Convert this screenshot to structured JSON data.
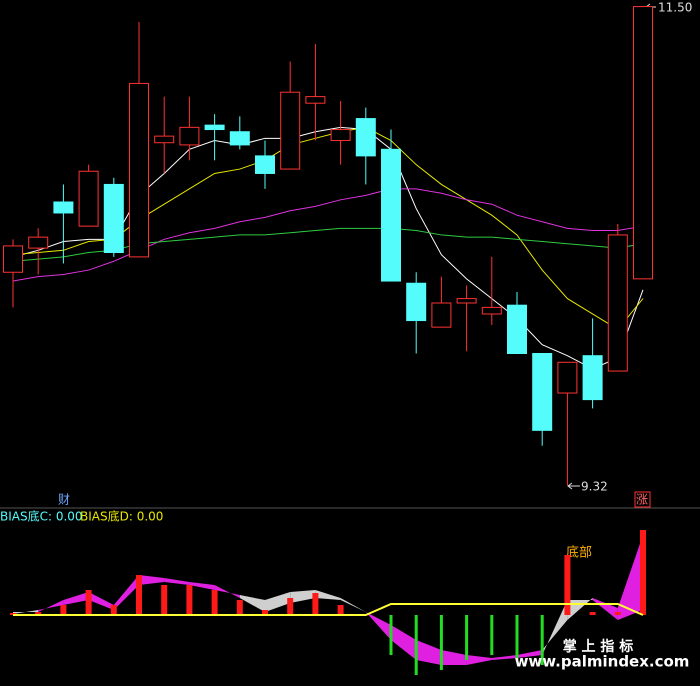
{
  "chart_data": [
    {
      "type": "candlestick",
      "up_color": "#ff3232",
      "down_color": "#54fcfc",
      "open": [
        10.29,
        10.4,
        10.61,
        10.5,
        10.69,
        10.36,
        10.88,
        10.87,
        10.96,
        10.93,
        10.82,
        10.76,
        11.06,
        10.89,
        10.99,
        10.85,
        10.24,
        10.04,
        10.15,
        10.1,
        10.14,
        9.92,
        9.74,
        9.91,
        9.84,
        10.26
      ],
      "high": [
        10.44,
        10.49,
        10.69,
        10.78,
        10.72,
        11.43,
        11.09,
        11.09,
        11.01,
        11.0,
        10.89,
        11.25,
        11.33,
        11.07,
        11.04,
        10.94,
        10.29,
        10.27,
        10.23,
        10.36,
        10.2,
        9.92,
        9.88,
        10.08,
        10.51,
        11.5
      ],
      "low": [
        10.13,
        10.28,
        10.33,
        10.5,
        10.36,
        10.36,
        10.74,
        10.8,
        10.8,
        10.85,
        10.67,
        10.76,
        10.89,
        10.78,
        10.69,
        10.25,
        9.92,
        10.04,
        9.93,
        10.05,
        9.92,
        9.5,
        9.32,
        9.67,
        9.84,
        10.26
      ],
      "close": [
        10.41,
        10.45,
        10.56,
        10.75,
        10.38,
        11.15,
        10.91,
        10.95,
        10.94,
        10.87,
        10.74,
        11.11,
        11.09,
        10.94,
        10.82,
        10.25,
        10.07,
        10.15,
        10.17,
        10.13,
        9.92,
        9.57,
        9.88,
        9.71,
        10.46,
        11.5
      ],
      "lines": [
        {
          "color": "#ffffff",
          "values": [
            10.36,
            10.39,
            10.43,
            10.44,
            10.44,
            10.64,
            10.74,
            10.85,
            10.89,
            10.87,
            10.9,
            10.9,
            10.93,
            10.95,
            10.94,
            10.85,
            10.58,
            10.37,
            10.26,
            10.17,
            10.08,
            9.96,
            9.91,
            9.85,
            9.9,
            10.21
          ]
        },
        {
          "color": "#e8e800",
          "values": [
            10.37,
            10.38,
            10.39,
            10.43,
            10.44,
            10.53,
            10.6,
            10.67,
            10.74,
            10.76,
            10.8,
            10.87,
            10.9,
            10.93,
            10.95,
            10.89,
            10.78,
            10.69,
            10.62,
            10.55,
            10.46,
            10.3,
            10.17,
            10.1,
            10.03,
            10.17
          ]
        },
        {
          "color": "#e033e0",
          "values": [
            10.25,
            10.27,
            10.28,
            10.3,
            10.34,
            10.39,
            10.44,
            10.47,
            10.49,
            10.52,
            10.54,
            10.57,
            10.59,
            10.62,
            10.64,
            10.67,
            10.67,
            10.65,
            10.62,
            10.6,
            10.55,
            10.52,
            10.49,
            10.48,
            10.48,
            10.5
          ]
        },
        {
          "color": "#2ecc40",
          "values": [
            10.34,
            10.35,
            10.36,
            10.38,
            10.39,
            10.42,
            10.43,
            10.44,
            10.45,
            10.46,
            10.46,
            10.47,
            10.48,
            10.49,
            10.49,
            10.49,
            10.48,
            10.46,
            10.45,
            10.45,
            10.44,
            10.43,
            10.42,
            10.41,
            10.4,
            10.42
          ]
        }
      ],
      "ylim": [
        9.23,
        11.53
      ],
      "high_label": "11.50",
      "low_label": "9.32",
      "left_marker": "财",
      "right_marker": "涨"
    },
    {
      "type": "indicator",
      "labels": [
        "BIAS底C: 0.00",
        "BIAS底D: 0.00"
      ],
      "label_colors": [
        "#54fcfc",
        "#e8e800"
      ],
      "annotation": "底部",
      "red_bars": [
        2,
        3,
        10,
        25,
        10,
        40,
        30,
        30,
        25,
        15,
        5,
        17,
        22,
        10,
        null,
        null,
        null,
        null,
        null,
        null,
        null,
        null,
        60,
        3,
        3,
        85
      ],
      "green_bars": [
        null,
        null,
        null,
        null,
        null,
        null,
        null,
        null,
        null,
        null,
        null,
        null,
        null,
        null,
        null,
        -40,
        -60,
        -55,
        -45,
        -40,
        -45,
        -50,
        null,
        null,
        null,
        null
      ],
      "line_a": [
        3,
        3,
        15,
        23,
        10,
        40,
        37,
        33,
        30,
        17,
        3,
        12,
        17,
        15,
        3,
        -10,
        -25,
        -35,
        -40,
        -43,
        -40,
        -35,
        -5,
        17,
        7,
        80
      ],
      "line_b": [
        1,
        5,
        10,
        15,
        5,
        30,
        33,
        30,
        25,
        20,
        15,
        23,
        25,
        17,
        3,
        -25,
        -45,
        -50,
        -50,
        -45,
        -43,
        -40,
        15,
        15,
        -5,
        5
      ],
      "yellow_line": [
        0,
        0,
        0,
        0,
        0,
        0,
        0,
        0,
        0,
        0,
        0,
        0,
        0,
        0,
        0,
        11,
        11,
        11,
        11,
        11,
        11,
        11,
        11,
        11,
        11,
        0
      ],
      "ylim": [
        -71,
        106
      ],
      "watermark": "掌 上 指 标",
      "url": "www.palmindex.com"
    }
  ]
}
